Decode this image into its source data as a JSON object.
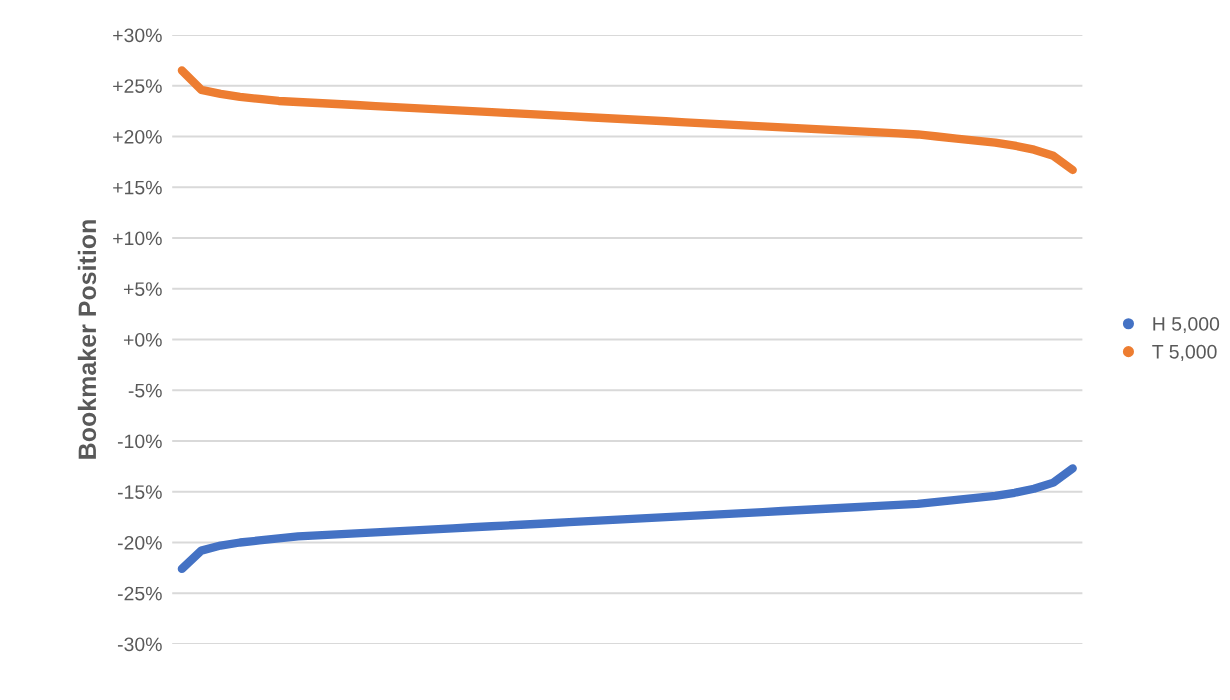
{
  "chart_data": {
    "type": "line",
    "ylabel": "Bookmaker Position",
    "categories": [
      null,
      null,
      null,
      null,
      null,
      null,
      null,
      null,
      null,
      null,
      null,
      null,
      null,
      null,
      null,
      null,
      null,
      null,
      null,
      null,
      null,
      null,
      null,
      null,
      null,
      null,
      null,
      null,
      null,
      null,
      null,
      null,
      null,
      null,
      null,
      null,
      null,
      null,
      null,
      null,
      null,
      null,
      null,
      null,
      null,
      null,
      null
    ],
    "series": [
      {
        "name": "H 5,000",
        "color": "#4472c4",
        "values": [
          -22.6,
          -20.8,
          -20.3,
          -20.0,
          -19.8,
          -19.6,
          -19.4,
          -19.3,
          -19.2,
          -19.1,
          -19.0,
          -18.9,
          -18.8,
          -18.7,
          -18.6,
          -18.5,
          -18.4,
          -18.3,
          -18.2,
          -18.1,
          -18.0,
          -17.9,
          -17.8,
          -17.7,
          -17.6,
          -17.5,
          -17.4,
          -17.3,
          -17.2,
          -17.1,
          -17.0,
          -16.9,
          -16.8,
          -16.7,
          -16.6,
          -16.5,
          -16.4,
          -16.3,
          -16.2,
          -16.0,
          -15.8,
          -15.6,
          -15.4,
          -15.1,
          -14.7,
          -14.1,
          -12.7
        ]
      },
      {
        "name": "T 5,000",
        "color": "#ed7d31",
        "values": [
          26.5,
          24.6,
          24.2,
          23.9,
          23.7,
          23.5,
          23.4,
          23.3,
          23.2,
          23.1,
          23.0,
          22.9,
          22.8,
          22.7,
          22.6,
          22.5,
          22.4,
          22.3,
          22.2,
          22.1,
          22.0,
          21.9,
          21.8,
          21.7,
          21.6,
          21.5,
          21.4,
          21.3,
          21.2,
          21.1,
          21.0,
          20.9,
          20.8,
          20.7,
          20.6,
          20.5,
          20.4,
          20.3,
          20.2,
          20.0,
          19.8,
          19.6,
          19.4,
          19.1,
          18.7,
          18.1,
          16.7
        ]
      }
    ],
    "ylim": [
      -30,
      30
    ],
    "yticks": [
      {
        "value": 30,
        "label": "+30%"
      },
      {
        "value": 25,
        "label": "+25%"
      },
      {
        "value": 20,
        "label": "+20%"
      },
      {
        "value": 15,
        "label": "+15%"
      },
      {
        "value": 10,
        "label": "+10%"
      },
      {
        "value": 5,
        "label": "+5%"
      },
      {
        "value": 0,
        "label": "+0%"
      },
      {
        "value": -5,
        "label": "-5%"
      },
      {
        "value": -10,
        "label": "-10%"
      },
      {
        "value": -15,
        "label": "-15%"
      },
      {
        "value": -20,
        "label": "-20%"
      },
      {
        "value": -25,
        "label": "-25%"
      },
      {
        "value": -30,
        "label": "-30%"
      }
    ],
    "tick_labels": "y",
    "grid": "y",
    "legend": "right"
  }
}
